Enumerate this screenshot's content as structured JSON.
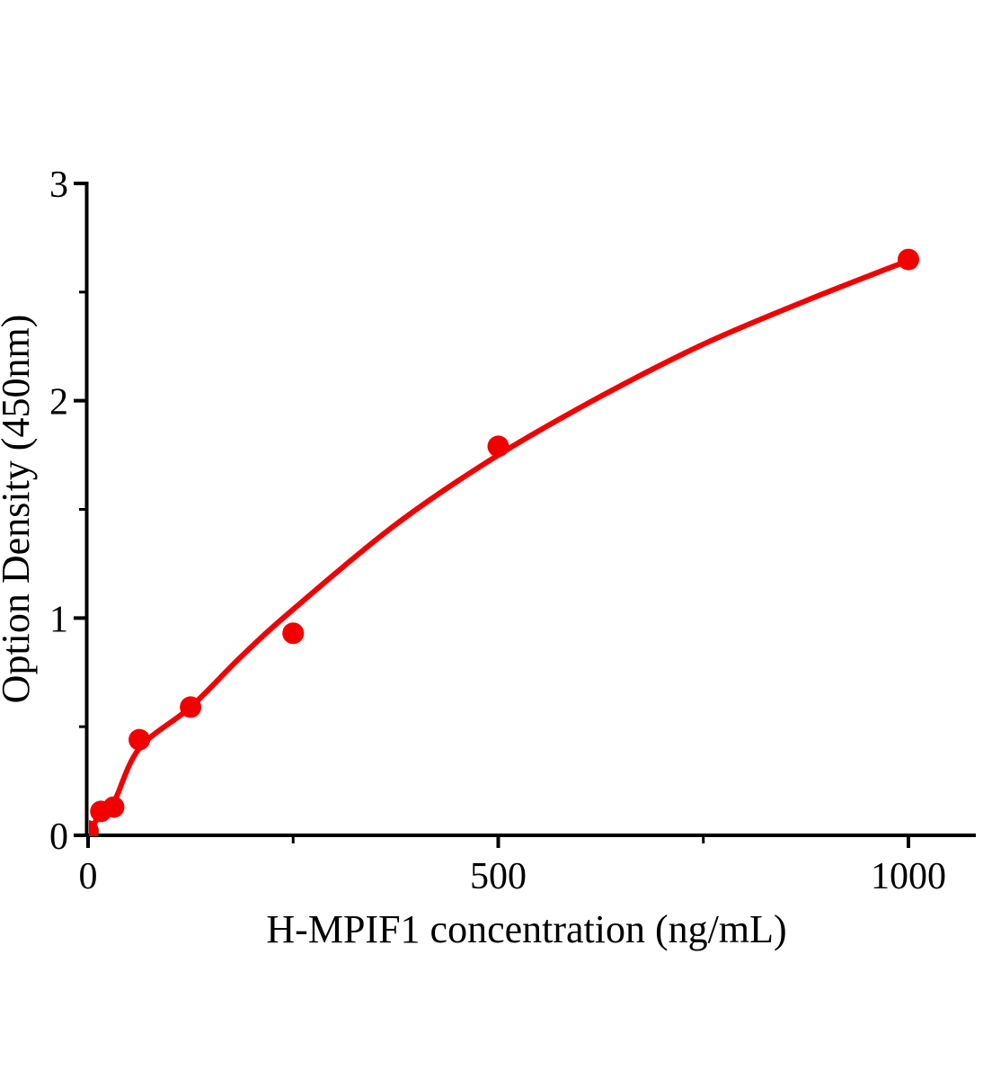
{
  "figure": {
    "background_color": "#ffffff",
    "axis_color": "#000000",
    "accent_color": "#f20000"
  },
  "chart_data": {
    "type": "scatter",
    "title": "",
    "xlabel": "H-MPIF1 concentration (ng/mL)",
    "ylabel": "Option Density (450nm)",
    "xlim": [
      0,
      1080
    ],
    "ylim": [
      0,
      3
    ],
    "x_major_ticks": [
      0,
      500,
      1000
    ],
    "x_minor_ticks": [
      250,
      750
    ],
    "y_major_ticks": [
      0,
      1,
      2,
      3
    ],
    "y_minor_ticks": [
      0.5,
      1.5,
      2.5
    ],
    "grid": false,
    "legend": null,
    "series": [
      {
        "name": "standard-points",
        "type": "scatter",
        "color": "#f20000",
        "marker": "circle",
        "marker_radius_px": 12,
        "x": [
          0,
          15.6,
          31.2,
          62.5,
          125,
          250,
          500,
          1000
        ],
        "y": [
          0.02,
          0.11,
          0.13,
          0.44,
          0.59,
          0.93,
          1.79,
          2.65
        ]
      },
      {
        "name": "fitted-curve",
        "type": "line",
        "color": "#f20000",
        "stroke_width_px": 6,
        "x": [
          0,
          15.6,
          31.2,
          62.5,
          125,
          186,
          250,
          375,
          500,
          625,
          750,
          875,
          1000
        ],
        "y": [
          0.005,
          0.1,
          0.15,
          0.4,
          0.59,
          0.82,
          1.04,
          1.43,
          1.75,
          2.02,
          2.26,
          2.46,
          2.645
        ]
      }
    ]
  }
}
